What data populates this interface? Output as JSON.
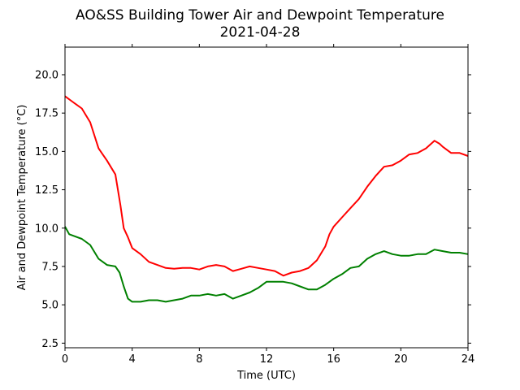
{
  "chart_data": {
    "type": "line",
    "title": "AO&SS Building Tower Air and Dewpoint Temperature",
    "subtitle": "2021-04-28",
    "xlabel": "Time (UTC)",
    "ylabel": "Air and Dewpoint Temperature (°C)",
    "xlim": [
      0,
      24
    ],
    "ylim": [
      2.2,
      21.8
    ],
    "x_ticks": [
      0,
      4,
      8,
      12,
      16,
      20,
      24
    ],
    "x_tick_labels": [
      "0",
      "4",
      "8",
      "12",
      "16",
      "20",
      "24"
    ],
    "y_ticks": [
      2.5,
      5.0,
      7.5,
      10.0,
      12.5,
      15.0,
      17.5,
      20.0
    ],
    "y_tick_labels": [
      "2.5",
      "5.0",
      "7.5",
      "10.0",
      "12.5",
      "15.0",
      "17.5",
      "20.0"
    ],
    "grid": false,
    "legend": "none",
    "series": [
      {
        "color": "#ff0000",
        "x": [
          0,
          0.5,
          1.0,
          1.5,
          2.0,
          2.5,
          3.0,
          3.3,
          3.5,
          3.75,
          4.0,
          4.5,
          5.0,
          5.5,
          6.0,
          6.5,
          7.0,
          7.5,
          8.0,
          8.5,
          9.0,
          9.5,
          10.0,
          10.5,
          11.0,
          11.5,
          12.0,
          12.5,
          13.0,
          13.5,
          14.0,
          14.5,
          15.0,
          15.5,
          15.75,
          16.0,
          16.5,
          17.0,
          17.5,
          18.0,
          18.5,
          19.0,
          19.5,
          20.0,
          20.5,
          21.0,
          21.5,
          22.0,
          22.3,
          22.5,
          23.0,
          23.5,
          24.0
        ],
        "values": [
          18.6,
          18.2,
          17.8,
          16.9,
          15.2,
          14.4,
          13.5,
          11.5,
          10.0,
          9.4,
          8.7,
          8.3,
          7.8,
          7.6,
          7.4,
          7.35,
          7.4,
          7.4,
          7.3,
          7.5,
          7.6,
          7.5,
          7.2,
          7.35,
          7.5,
          7.4,
          7.3,
          7.2,
          6.9,
          7.1,
          7.2,
          7.4,
          7.9,
          8.8,
          9.6,
          10.1,
          10.7,
          11.3,
          11.9,
          12.7,
          13.4,
          14.0,
          14.1,
          14.4,
          14.8,
          14.9,
          15.2,
          15.7,
          15.5,
          15.3,
          14.9,
          14.9,
          14.7
        ]
      },
      {
        "color": "#008000",
        "x": [
          0,
          0.25,
          0.5,
          1.0,
          1.5,
          2.0,
          2.5,
          3.0,
          3.25,
          3.5,
          3.75,
          4.0,
          4.5,
          5.0,
          5.5,
          6.0,
          6.5,
          7.0,
          7.5,
          8.0,
          8.5,
          9.0,
          9.5,
          10.0,
          10.5,
          11.0,
          11.5,
          12.0,
          12.5,
          13.0,
          13.5,
          14.0,
          14.5,
          15.0,
          15.5,
          16.0,
          16.5,
          17.0,
          17.5,
          18.0,
          18.5,
          19.0,
          19.5,
          20.0,
          20.5,
          21.0,
          21.5,
          22.0,
          22.5,
          23.0,
          23.5,
          24.0
        ],
        "values": [
          10.1,
          9.6,
          9.5,
          9.3,
          8.9,
          8.0,
          7.6,
          7.5,
          7.1,
          6.2,
          5.4,
          5.2,
          5.2,
          5.3,
          5.3,
          5.2,
          5.3,
          5.4,
          5.6,
          5.6,
          5.7,
          5.6,
          5.7,
          5.4,
          5.6,
          5.8,
          6.1,
          6.5,
          6.5,
          6.5,
          6.4,
          6.2,
          6.0,
          6.0,
          6.3,
          6.7,
          7.0,
          7.4,
          7.5,
          8.0,
          8.3,
          8.5,
          8.3,
          8.2,
          8.2,
          8.3,
          8.3,
          8.6,
          8.5,
          8.4,
          8.4,
          8.3
        ]
      }
    ]
  }
}
